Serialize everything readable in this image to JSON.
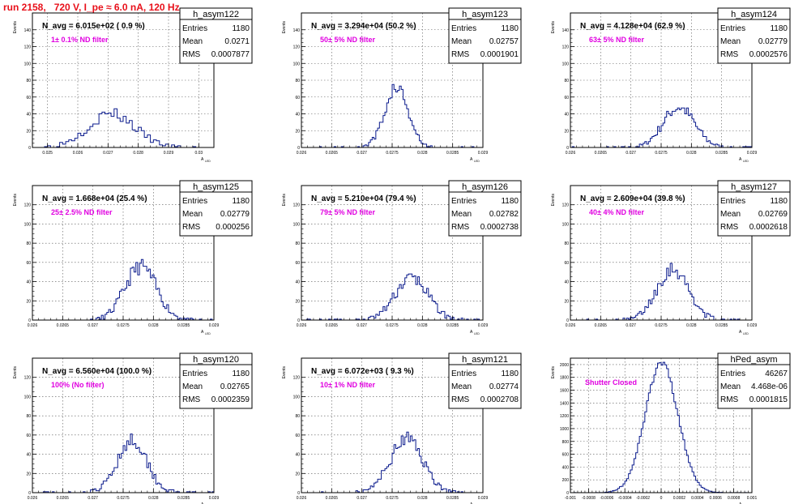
{
  "title": "run 2158,   720 V, I_pe ≈ 6.0 nA, 120 Hz",
  "colors": {
    "title": "#e8101a",
    "hist": "#0a1a8c",
    "annotation": "#e000e0",
    "grid": "#555555"
  },
  "axis_label_y": "Events",
  "axis_label_x": "A",
  "axis_label_x_sub": "LED",
  "chart_data": [
    {
      "type": "bar",
      "name": "h_asym122",
      "n_avg": "N_avg = 6.015e+02 ( 0.9 %)",
      "annotation": "1± 0.1% ND filter",
      "stats": {
        "entries_label": "Entries",
        "entries": "1180",
        "mean_label": "Mean",
        "mean": "0.0271",
        "rms_label": "RMS",
        "rms": "0.0007877"
      },
      "xlim": [
        0.0245,
        0.0305
      ],
      "ylim": [
        0,
        160
      ],
      "xticks": [
        "0.025",
        "0.026",
        "0.027",
        "0.028",
        "0.029",
        "0.03"
      ],
      "xtick_vals": [
        0.025,
        0.026,
        0.027,
        0.028,
        0.029,
        0.03
      ],
      "yticks": [
        "0",
        "20",
        "40",
        "60",
        "80",
        "100",
        "120",
        "140"
      ],
      "ytick_vals": [
        0,
        20,
        40,
        60,
        80,
        100,
        120,
        140
      ],
      "grid": true,
      "gen": {
        "mean": 0.0271,
        "sigma": 0.00078,
        "peak": 40,
        "bin": 0.0001,
        "seed": 3
      }
    },
    {
      "type": "bar",
      "name": "h_asym123",
      "n_avg": "N_avg = 3.294e+04 (50.2 %)",
      "annotation": "50± 5% ND filter",
      "stats": {
        "entries_label": "Entries",
        "entries": "1180",
        "mean_label": "Mean",
        "mean": "0.02757",
        "rms_label": "RMS",
        "rms": "0.0001901"
      },
      "xlim": [
        0.026,
        0.029
      ],
      "ylim": [
        0,
        160
      ],
      "xticks": [
        "0.026",
        "0.0265",
        "0.027",
        "0.0275",
        "0.028",
        "0.0285",
        "0.029"
      ],
      "xtick_vals": [
        0.026,
        0.0265,
        0.027,
        0.0275,
        0.028,
        0.0285,
        0.029
      ],
      "yticks": [
        "0",
        "20",
        "40",
        "60",
        "80",
        "100",
        "120",
        "140"
      ],
      "ytick_vals": [
        0,
        20,
        40,
        60,
        80,
        100,
        120,
        140
      ],
      "grid": true,
      "gen": {
        "mean": 0.02757,
        "sigma": 0.00019,
        "peak": 72,
        "bin": 3e-05,
        "seed": 5
      }
    },
    {
      "type": "bar",
      "name": "h_asym124",
      "n_avg": "N_avg = 4.128e+04 (62.9 %)",
      "annotation": "63± 5% ND filter",
      "stats": {
        "entries_label": "Entries",
        "entries": "1180",
        "mean_label": "Mean",
        "mean": "0.02779",
        "rms_label": "RMS",
        "rms": "0.0002576"
      },
      "xlim": [
        0.026,
        0.029
      ],
      "ylim": [
        0,
        160
      ],
      "xticks": [
        "0.026",
        "0.0265",
        "0.027",
        "0.0275",
        "0.028",
        "0.0285",
        "0.029"
      ],
      "xtick_vals": [
        0.026,
        0.0265,
        0.027,
        0.0275,
        0.028,
        0.0285,
        0.029
      ],
      "yticks": [
        "0",
        "20",
        "40",
        "60",
        "80",
        "100",
        "120",
        "140"
      ],
      "ytick_vals": [
        0,
        20,
        40,
        60,
        80,
        100,
        120,
        140
      ],
      "grid": true,
      "gen": {
        "mean": 0.02779,
        "sigma": 0.00026,
        "peak": 48,
        "bin": 3e-05,
        "seed": 7
      }
    },
    {
      "type": "bar",
      "name": "h_asym125",
      "n_avg": "N_avg = 1.668e+04 (25.4 %)",
      "annotation": "25± 2.5% ND filter",
      "stats": {
        "entries_label": "Entries",
        "entries": "1180",
        "mean_label": "Mean",
        "mean": "0.02779",
        "rms_label": "RMS",
        "rms": "0.000256"
      },
      "xlim": [
        0.026,
        0.029
      ],
      "ylim": [
        0,
        140
      ],
      "xticks": [
        "0.026",
        "0.0265",
        "0.027",
        "0.0275",
        "0.028",
        "0.0285",
        "0.029"
      ],
      "xtick_vals": [
        0.026,
        0.0265,
        0.027,
        0.0275,
        0.028,
        0.0285,
        0.029
      ],
      "yticks": [
        "0",
        "20",
        "40",
        "60",
        "80",
        "100",
        "120"
      ],
      "ytick_vals": [
        0,
        20,
        40,
        60,
        80,
        100,
        120
      ],
      "grid": true,
      "gen": {
        "mean": 0.02779,
        "sigma": 0.00026,
        "peak": 56,
        "bin": 3e-05,
        "seed": 11
      }
    },
    {
      "type": "bar",
      "name": "h_asym126",
      "n_avg": "N_avg = 5.210e+04 (79.4 %)",
      "annotation": "79± 5% ND filter",
      "stats": {
        "entries_label": "Entries",
        "entries": "1180",
        "mean_label": "Mean",
        "mean": "0.02782",
        "rms_label": "RMS",
        "rms": "0.0002738"
      },
      "xlim": [
        0.026,
        0.029
      ],
      "ylim": [
        0,
        140
      ],
      "xticks": [
        "0.026",
        "0.0265",
        "0.027",
        "0.0275",
        "0.028",
        "0.0285",
        "0.029"
      ],
      "xtick_vals": [
        0.026,
        0.0265,
        0.027,
        0.0275,
        0.028,
        0.0285,
        0.029
      ],
      "yticks": [
        "0",
        "20",
        "40",
        "60",
        "80",
        "100",
        "120"
      ],
      "ytick_vals": [
        0,
        20,
        40,
        60,
        80,
        100,
        120
      ],
      "grid": true,
      "gen": {
        "mean": 0.02782,
        "sigma": 0.00027,
        "peak": 44,
        "bin": 3e-05,
        "seed": 13
      }
    },
    {
      "type": "bar",
      "name": "h_asym127",
      "n_avg": "N_avg = 2.609e+04 (39.8 %)",
      "annotation": "40± 4% ND filter",
      "stats": {
        "entries_label": "Entries",
        "entries": "1180",
        "mean_label": "Mean",
        "mean": "0.02769",
        "rms_label": "RMS",
        "rms": "0.0002618"
      },
      "xlim": [
        0.026,
        0.029
      ],
      "ylim": [
        0,
        140
      ],
      "xticks": [
        "0.026",
        "0.0265",
        "0.027",
        "0.0275",
        "0.028",
        "0.0285",
        "0.029"
      ],
      "xtick_vals": [
        0.026,
        0.0265,
        0.027,
        0.0275,
        0.028,
        0.0285,
        0.029
      ],
      "yticks": [
        "0",
        "20",
        "40",
        "60",
        "80",
        "100",
        "120"
      ],
      "ytick_vals": [
        0,
        20,
        40,
        60,
        80,
        100,
        120
      ],
      "grid": true,
      "gen": {
        "mean": 0.02769,
        "sigma": 0.00026,
        "peak": 54,
        "bin": 3e-05,
        "seed": 17
      }
    },
    {
      "type": "bar",
      "name": "h_asym120",
      "n_avg": "N_avg = 6.560e+04 (100.0 %)",
      "annotation": "100% (No filter)",
      "stats": {
        "entries_label": "Entries",
        "entries": "1180",
        "mean_label": "Mean",
        "mean": "0.02765",
        "rms_label": "RMS",
        "rms": "0.0002359"
      },
      "xlim": [
        0.026,
        0.029
      ],
      "ylim": [
        0,
        140
      ],
      "xticks": [
        "0.026",
        "0.0265",
        "0.027",
        "0.0275",
        "0.028",
        "0.0285",
        "0.029"
      ],
      "xtick_vals": [
        0.026,
        0.0265,
        0.027,
        0.0275,
        0.028,
        0.0285,
        0.029
      ],
      "yticks": [
        "0",
        "20",
        "40",
        "60",
        "80",
        "100",
        "120"
      ],
      "ytick_vals": [
        0,
        20,
        40,
        60,
        80,
        100,
        120
      ],
      "grid": true,
      "gen": {
        "mean": 0.02765,
        "sigma": 0.00024,
        "peak": 56,
        "bin": 3e-05,
        "seed": 19
      }
    },
    {
      "type": "bar",
      "name": "h_asym121",
      "n_avg": "N_avg = 6.072e+03 ( 9.3 %)",
      "annotation": "10± 1% ND filter",
      "stats": {
        "entries_label": "Entries",
        "entries": "1180",
        "mean_label": "Mean",
        "mean": "0.02774",
        "rms_label": "RMS",
        "rms": "0.0002708"
      },
      "xlim": [
        0.026,
        0.029
      ],
      "ylim": [
        0,
        140
      ],
      "xticks": [
        "0.026",
        "0.0265",
        "0.027",
        "0.0275",
        "0.028",
        "0.0285",
        "0.029"
      ],
      "xtick_vals": [
        0.026,
        0.0265,
        0.027,
        0.0275,
        0.028,
        0.0285,
        0.029
      ],
      "yticks": [
        "0",
        "20",
        "40",
        "60",
        "80",
        "100",
        "120"
      ],
      "ytick_vals": [
        0,
        20,
        40,
        60,
        80,
        100,
        120
      ],
      "grid": true,
      "gen": {
        "mean": 0.02774,
        "sigma": 0.00027,
        "peak": 56,
        "bin": 3e-05,
        "seed": 23
      }
    },
    {
      "type": "bar",
      "name": "hPed_asym",
      "n_avg": "",
      "annotation": "Shutter Closed",
      "stats": {
        "entries_label": "Entries",
        "entries": "46267",
        "mean_label": "Mean",
        "mean": "4.468e-06",
        "rms_label": "RMS",
        "rms": "0.0001815"
      },
      "xlim": [
        -0.001,
        0.001
      ],
      "ylim": [
        0,
        2100
      ],
      "xticks": [
        "-0.001",
        "-0.0008",
        "-0.0006",
        "-0.0004",
        "-0.0002",
        "0",
        "0.0002",
        "0.0004",
        "0.0006",
        "0.0008",
        "0.001"
      ],
      "xtick_vals": [
        -0.001,
        -0.0008,
        -0.0006,
        -0.0004,
        -0.0002,
        0,
        0.0002,
        0.0004,
        0.0006,
        0.0008,
        0.001
      ],
      "yticks": [
        "0",
        "200",
        "400",
        "600",
        "800",
        "1000",
        "1200",
        "1400",
        "1600",
        "1800",
        "2000"
      ],
      "ytick_vals": [
        0,
        200,
        400,
        600,
        800,
        1000,
        1200,
        1400,
        1600,
        1800,
        2000
      ],
      "grid": true,
      "gen": {
        "mean": 4.5e-06,
        "sigma": 0.00018,
        "peak": 2020,
        "bin": 2e-05,
        "seed": 29
      }
    }
  ]
}
